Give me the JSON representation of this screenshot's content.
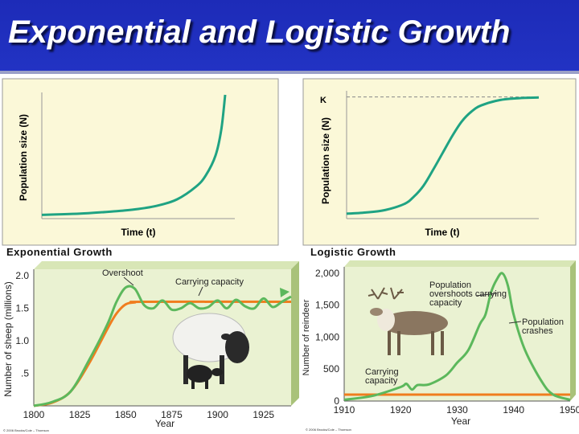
{
  "slide_title": "Exponential and Logistic Growth",
  "colors": {
    "title_bg": "#2233c4",
    "panel_bg": "#fbf8d8",
    "curve_teal": "#1fa383",
    "curve_green": "#5cb85c",
    "carrying_orange": "#f07d1e"
  },
  "chart_data": [
    {
      "type": "line",
      "title": "",
      "caption": "Exponential Growth",
      "xlabel": "Time (t)",
      "ylabel": "Population size (N)",
      "grid": false,
      "series": [
        {
          "x": [
            0,
            10,
            20,
            30,
            40,
            50,
            60,
            70,
            80,
            85,
            90,
            93,
            95
          ],
          "y": [
            0.3,
            0.35,
            0.4,
            0.5,
            0.62,
            0.78,
            1.05,
            1.55,
            2.6,
            3.5,
            5.1,
            7.2,
            10
          ]
        }
      ],
      "xlim": [
        0,
        100
      ],
      "ylim": [
        0,
        10
      ]
    },
    {
      "type": "line",
      "title": "",
      "caption": "Logistic Growth",
      "xlabel": "Time (t)",
      "ylabel": "Population size (N)",
      "k_label": "K",
      "k_value": 10,
      "grid": false,
      "series": [
        {
          "x": [
            0,
            10,
            20,
            30,
            35,
            40,
            45,
            50,
            55,
            60,
            65,
            70,
            80,
            90,
            100
          ],
          "y": [
            0.4,
            0.5,
            0.7,
            1.2,
            1.8,
            2.7,
            4.0,
            5.4,
            6.8,
            8.0,
            8.8,
            9.3,
            9.75,
            9.9,
            9.95
          ]
        }
      ],
      "xlim": [
        0,
        100
      ],
      "ylim": [
        0,
        10.5
      ]
    },
    {
      "type": "line",
      "title": "",
      "xlabel": "Year",
      "ylabel": "Number of sheep (millions)",
      "x_ticks": [
        1800,
        1825,
        1850,
        1875,
        1900,
        1925
      ],
      "y_ticks": [
        ".5",
        "1.0",
        "1.5",
        "2.0"
      ],
      "xlim": [
        1800,
        1940
      ],
      "ylim": [
        0,
        2.1
      ],
      "annotations": [
        "Overshoot",
        "Carrying capacity"
      ],
      "series": [
        {
          "x": [
            1800,
            1810,
            1820,
            1830,
            1840,
            1845,
            1850,
            1855,
            1860,
            1865,
            1870,
            1875,
            1880,
            1885,
            1890,
            1895,
            1900,
            1905,
            1910,
            1915,
            1920,
            1925,
            1930,
            1935,
            1940
          ],
          "y": [
            0,
            0.06,
            0.22,
            0.7,
            1.25,
            1.6,
            1.82,
            1.8,
            1.55,
            1.5,
            1.62,
            1.48,
            1.5,
            1.58,
            1.5,
            1.52,
            1.62,
            1.5,
            1.63,
            1.53,
            1.5,
            1.65,
            1.52,
            1.6,
            1.68
          ]
        },
        {
          "x": [
            1800,
            1810,
            1820,
            1830,
            1840,
            1845,
            1850,
            1855,
            1860,
            1940
          ],
          "y": [
            0,
            0.05,
            0.22,
            0.65,
            1.18,
            1.42,
            1.56,
            1.59,
            1.6,
            1.6
          ]
        }
      ]
    },
    {
      "type": "line",
      "title": "",
      "xlabel": "Year",
      "ylabel": "Number of reindeer",
      "x_ticks": [
        1910,
        1920,
        1930,
        1940,
        1950
      ],
      "y_ticks": [
        "0",
        "500",
        "1,000",
        "1,500",
        "2,000"
      ],
      "xlim": [
        1910,
        1950
      ],
      "ylim": [
        0,
        2100
      ],
      "annotations": [
        "Population overshoots carrying capacity",
        "Population crashes",
        "Carrying capacity"
      ],
      "series": [
        {
          "x": [
            1910,
            1915,
            1920,
            1921,
            1922,
            1923,
            1925,
            1928,
            1930,
            1932,
            1934,
            1935,
            1936,
            1937,
            1938,
            1939,
            1940,
            1942,
            1945,
            1947,
            1950
          ],
          "y": [
            20,
            80,
            220,
            270,
            180,
            250,
            260,
            400,
            600,
            800,
            1200,
            1350,
            1700,
            1900,
            2000,
            1800,
            1350,
            800,
            300,
            100,
            20
          ]
        },
        {
          "x": [
            1910,
            1950
          ],
          "y": [
            100,
            100
          ]
        }
      ]
    }
  ],
  "copyright_left": "© 2006 Brooks/Cole – Thomson",
  "copyright_right": "© 2006 Brooks/Cole – Thomson"
}
